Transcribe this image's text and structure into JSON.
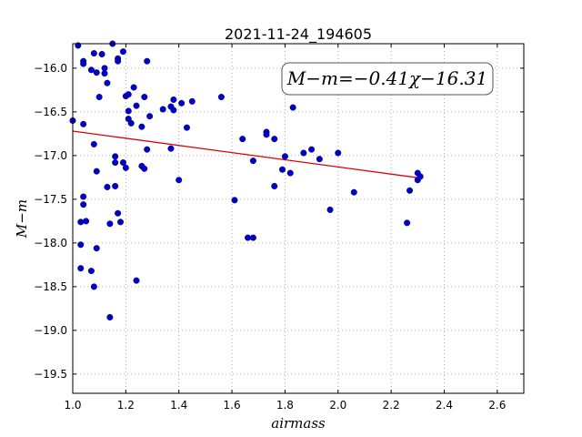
{
  "chart_data": {
    "type": "scatter",
    "title": "2021-11-24_194605",
    "xlabel": "airmass",
    "ylabel": "M−m",
    "xlim": [
      1.0,
      2.7
    ],
    "ylim": [
      -15.72,
      -19.72
    ],
    "y_axis_inverted": true,
    "grid": true,
    "grid_style": "dotted",
    "xticks": [
      1.0,
      1.2,
      1.4,
      1.6,
      1.8,
      2.0,
      2.2,
      2.4,
      2.6
    ],
    "xtick_labels": [
      "1.0",
      "1.2",
      "1.4",
      "1.6",
      "1.8",
      "2.0",
      "2.2",
      "2.4",
      "2.6"
    ],
    "yticks": [
      -16.0,
      -16.5,
      -17.0,
      -17.5,
      -18.0,
      -18.5,
      -19.0,
      -19.5
    ],
    "ytick_labels": [
      "−16.0",
      "−16.5",
      "−17.0",
      "−17.5",
      "−18.0",
      "−18.5",
      "−19.0",
      "−19.5"
    ],
    "annotation": "M−m=−0.41χ−16.31",
    "colors": {
      "points": "#0000cc",
      "fit_line": "#dd0000",
      "grid": "#999999"
    },
    "points": [
      {
        "x": 1.0,
        "y": -16.6
      },
      {
        "x": 1.02,
        "y": -15.74
      },
      {
        "x": 1.03,
        "y": -17.76
      },
      {
        "x": 1.03,
        "y": -18.02
      },
      {
        "x": 1.03,
        "y": -18.29
      },
      {
        "x": 1.04,
        "y": -16.64
      },
      {
        "x": 1.04,
        "y": -15.92
      },
      {
        "x": 1.04,
        "y": -15.95
      },
      {
        "x": 1.04,
        "y": -17.47
      },
      {
        "x": 1.04,
        "y": -17.56
      },
      {
        "x": 1.05,
        "y": -17.75
      },
      {
        "x": 1.07,
        "y": -16.02
      },
      {
        "x": 1.07,
        "y": -18.32
      },
      {
        "x": 1.08,
        "y": -15.83
      },
      {
        "x": 1.08,
        "y": -16.87
      },
      {
        "x": 1.08,
        "y": -18.5
      },
      {
        "x": 1.09,
        "y": -16.05
      },
      {
        "x": 1.09,
        "y": -17.18
      },
      {
        "x": 1.09,
        "y": -18.06
      },
      {
        "x": 1.1,
        "y": -16.33
      },
      {
        "x": 1.11,
        "y": -15.84
      },
      {
        "x": 1.12,
        "y": -16.0
      },
      {
        "x": 1.12,
        "y": -16.06
      },
      {
        "x": 1.13,
        "y": -16.17
      },
      {
        "x": 1.13,
        "y": -17.36
      },
      {
        "x": 1.14,
        "y": -17.78
      },
      {
        "x": 1.14,
        "y": -18.85
      },
      {
        "x": 1.15,
        "y": -15.72
      },
      {
        "x": 1.16,
        "y": -17.01
      },
      {
        "x": 1.16,
        "y": -17.08
      },
      {
        "x": 1.16,
        "y": -17.35
      },
      {
        "x": 1.17,
        "y": -15.89
      },
      {
        "x": 1.17,
        "y": -15.92
      },
      {
        "x": 1.17,
        "y": -17.66
      },
      {
        "x": 1.18,
        "y": -17.76
      },
      {
        "x": 1.19,
        "y": -15.81
      },
      {
        "x": 1.19,
        "y": -17.08
      },
      {
        "x": 1.2,
        "y": -17.14
      },
      {
        "x": 1.2,
        "y": -16.32
      },
      {
        "x": 1.21,
        "y": -16.3
      },
      {
        "x": 1.21,
        "y": -16.49
      },
      {
        "x": 1.21,
        "y": -16.58
      },
      {
        "x": 1.22,
        "y": -16.63
      },
      {
        "x": 1.23,
        "y": -16.22
      },
      {
        "x": 1.24,
        "y": -16.43
      },
      {
        "x": 1.24,
        "y": -18.43
      },
      {
        "x": 1.26,
        "y": -16.67
      },
      {
        "x": 1.26,
        "y": -17.12
      },
      {
        "x": 1.27,
        "y": -17.15
      },
      {
        "x": 1.27,
        "y": -16.33
      },
      {
        "x": 1.28,
        "y": -15.92
      },
      {
        "x": 1.28,
        "y": -16.93
      },
      {
        "x": 1.29,
        "y": -16.55
      },
      {
        "x": 1.34,
        "y": -16.47
      },
      {
        "x": 1.37,
        "y": -16.44
      },
      {
        "x": 1.37,
        "y": -16.92
      },
      {
        "x": 1.38,
        "y": -16.36
      },
      {
        "x": 1.38,
        "y": -16.48
      },
      {
        "x": 1.4,
        "y": -17.28
      },
      {
        "x": 1.41,
        "y": -16.4
      },
      {
        "x": 1.43,
        "y": -16.68
      },
      {
        "x": 1.45,
        "y": -16.38
      },
      {
        "x": 1.56,
        "y": -16.33
      },
      {
        "x": 1.61,
        "y": -17.51
      },
      {
        "x": 1.64,
        "y": -16.81
      },
      {
        "x": 1.66,
        "y": -17.94
      },
      {
        "x": 1.68,
        "y": -17.06
      },
      {
        "x": 1.68,
        "y": -17.94
      },
      {
        "x": 1.73,
        "y": -16.73
      },
      {
        "x": 1.73,
        "y": -16.76
      },
      {
        "x": 1.76,
        "y": -16.81
      },
      {
        "x": 1.76,
        "y": -17.35
      },
      {
        "x": 1.79,
        "y": -17.16
      },
      {
        "x": 1.8,
        "y": -17.01
      },
      {
        "x": 1.82,
        "y": -17.2
      },
      {
        "x": 1.83,
        "y": -16.45
      },
      {
        "x": 1.87,
        "y": -16.97
      },
      {
        "x": 1.9,
        "y": -16.93
      },
      {
        "x": 1.93,
        "y": -17.04
      },
      {
        "x": 1.97,
        "y": -17.62
      },
      {
        "x": 2.0,
        "y": -16.97
      },
      {
        "x": 2.06,
        "y": -17.42
      },
      {
        "x": 2.26,
        "y": -17.77
      },
      {
        "x": 2.27,
        "y": -17.4
      },
      {
        "x": 2.3,
        "y": -17.2
      },
      {
        "x": 2.3,
        "y": -17.28
      },
      {
        "x": 2.31,
        "y": -17.24
      }
    ],
    "fit_line": {
      "slope": -0.41,
      "intercept": -16.31,
      "x_range": [
        1.0,
        2.31
      ]
    }
  }
}
